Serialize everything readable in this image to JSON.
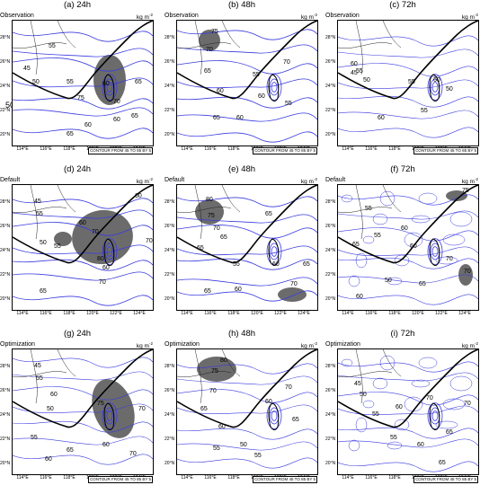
{
  "page_label": "50",
  "units": "kg m",
  "contour_info": "CONTOUR FROM 45 TO 85 BY 5",
  "latitudes": [
    "28°N",
    "26°N",
    "24°N",
    "22°N",
    "20°N"
  ],
  "longitudes": [
    "114°E",
    "116°E",
    "118°E",
    "120°E",
    "122°E",
    "124°E"
  ],
  "panels": [
    {
      "title": "(a) 24h",
      "run": "Observation",
      "show_contour_info": true,
      "contour_labels": [
        "55",
        "50",
        "45",
        "55",
        "60",
        "70",
        "75",
        "60",
        "60",
        "65",
        "65",
        "65"
      ]
    },
    {
      "title": "(b) 48h",
      "run": "Observation",
      "show_contour_info": true,
      "contour_labels": [
        "75",
        "70",
        "65",
        "60",
        "55",
        "70",
        "60",
        "55",
        "60",
        "65"
      ]
    },
    {
      "title": "(c) 72h",
      "run": "Observation",
      "show_contour_info": true,
      "contour_labels": [
        "60",
        "55",
        "45",
        "50",
        "55",
        "60",
        "50",
        "55",
        "60"
      ]
    },
    {
      "title": "(d) 24h",
      "run": "Default",
      "show_contour_info": false,
      "contour_labels": [
        "45",
        "55",
        "60",
        "50",
        "55",
        "70",
        "80",
        "60",
        "70",
        "65",
        "60",
        "70"
      ]
    },
    {
      "title": "(e) 48h",
      "run": "Default",
      "show_contour_info": false,
      "contour_labels": [
        "80",
        "75",
        "70",
        "65",
        "65",
        "65",
        "60",
        "55",
        "60",
        "65",
        "70",
        "65"
      ]
    },
    {
      "title": "(f) 72h",
      "run": "Default",
      "show_contour_info": false,
      "contour_labels": [
        "75",
        "55",
        "60",
        "55",
        "65",
        "60",
        "70",
        "70",
        "50",
        "65",
        "60"
      ]
    },
    {
      "title": "(g) 24h",
      "run": "Optimization",
      "show_contour_info": true,
      "contour_labels": [
        "45",
        "55",
        "60",
        "50",
        "75",
        "55",
        "70",
        "60",
        "65",
        "60",
        "70"
      ]
    },
    {
      "title": "(h) 48h",
      "run": "Optimization",
      "show_contour_info": true,
      "contour_labels": [
        "80",
        "75",
        "70",
        "65",
        "60",
        "55",
        "50",
        "55",
        "60",
        "65",
        "70"
      ]
    },
    {
      "title": "(i) 72h",
      "run": "Optimization",
      "show_contour_info": true,
      "contour_labels": [
        "45",
        "50",
        "55",
        "60",
        "70",
        "55",
        "60",
        "65",
        "70",
        "65"
      ]
    }
  ]
}
